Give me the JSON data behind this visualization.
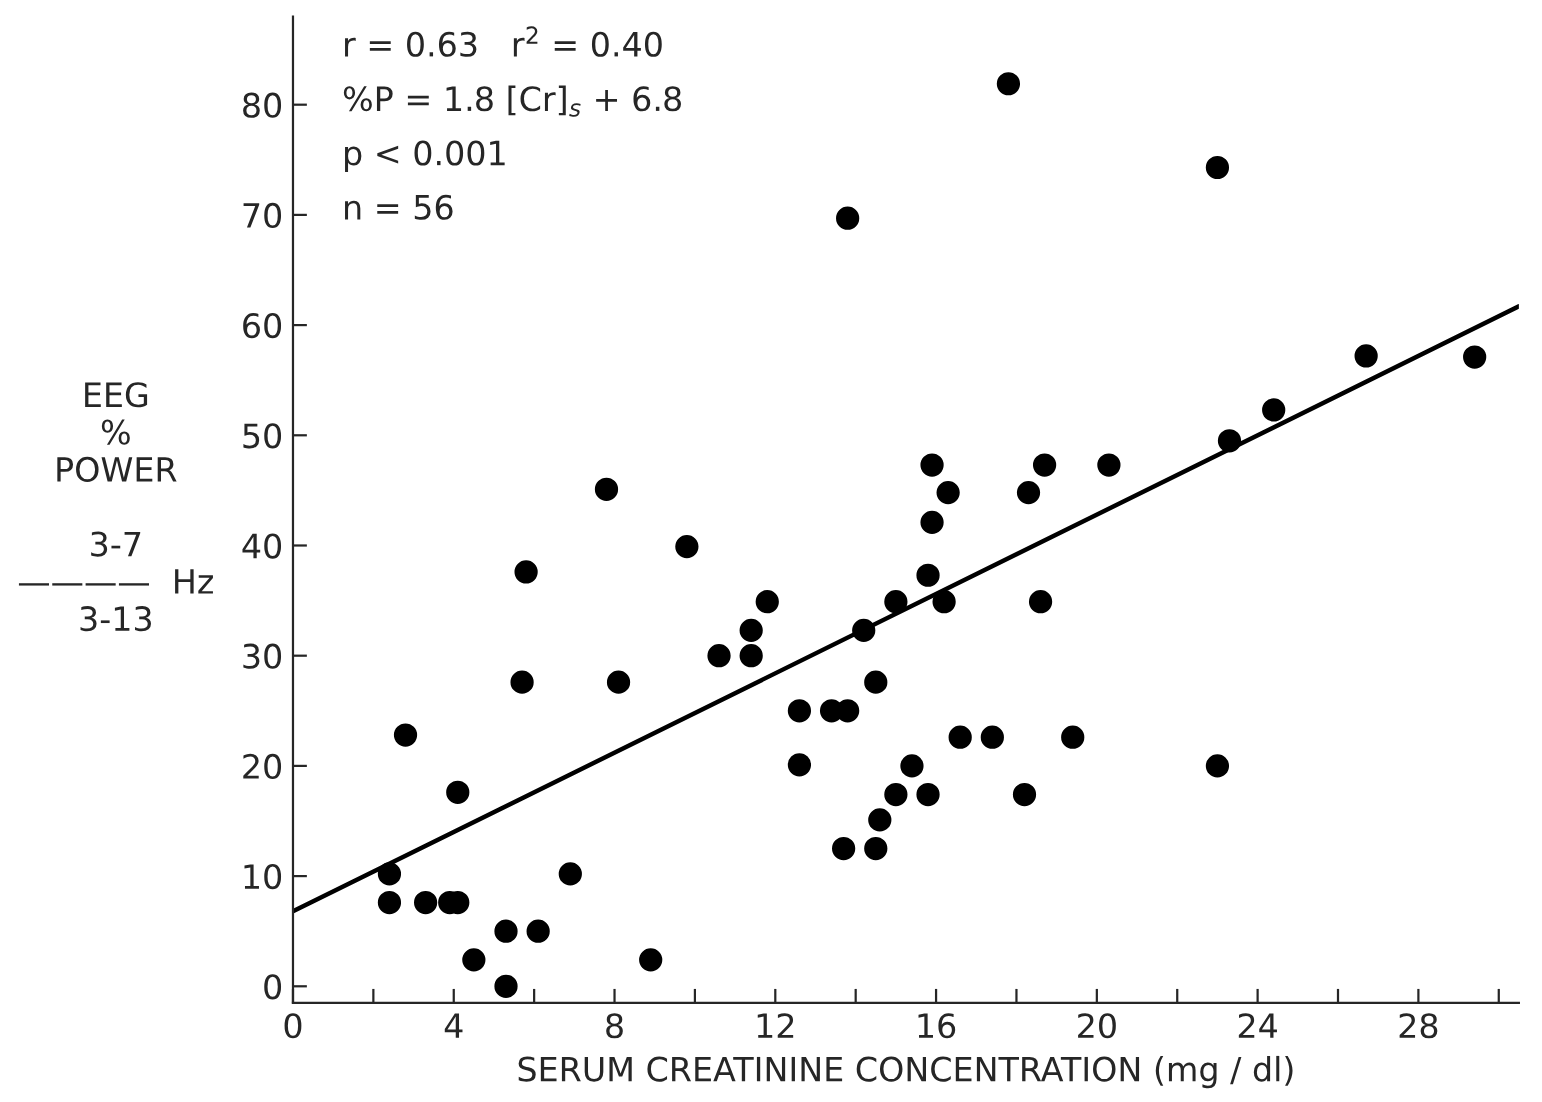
{
  "chart_data": {
    "type": "scatter",
    "xlabel": "SERUM CREATININE CONCENTRATION (mg / dl)",
    "ylabel": "EEG\n%\nPOWER\n\n3-7\n————  Hz\n3-13",
    "annotations": [
      "r = 0.63   r$^{2}$ = 0.40",
      "%P = 1.8 [Cr]$_{s}$ + 6.8",
      "p < 0.001",
      "n = 56"
    ],
    "series": [
      {
        "color": "#000000",
        "marker": "circle",
        "x": [
          2.4,
          2.4,
          2.8,
          3.3,
          3.9,
          4.1,
          4.1,
          4.5,
          5.3,
          5.3,
          5.7,
          5.8,
          6.1,
          6.9,
          7.8,
          8.1,
          8.9,
          9.8,
          10.6,
          11.4,
          11.4,
          11.8,
          12.6,
          12.6,
          13.4,
          13.8,
          13.7,
          14.5,
          14.2,
          14.5,
          14.6,
          15.0,
          15.0,
          15.4,
          15.8,
          15.8,
          15.9,
          15.9,
          16.2,
          16.3,
          16.6,
          17.4,
          18.2,
          18.3,
          18.6,
          18.7,
          19.4,
          20.3,
          23.0,
          23.3,
          17.8,
          13.8,
          23.0,
          26.7,
          29.4,
          24.4
        ],
        "values": [
          10.2,
          7.6,
          22.8,
          7.6,
          7.6,
          7.6,
          17.6,
          2.4,
          5.0,
          0.0,
          27.6,
          37.6,
          5.0,
          10.2,
          45.1,
          27.6,
          2.4,
          39.9,
          30.0,
          32.3,
          30.0,
          34.9,
          25.0,
          20.1,
          25.0,
          25.0,
          12.5,
          27.6,
          32.3,
          12.5,
          15.1,
          17.4,
          34.9,
          20.0,
          17.4,
          37.3,
          42.1,
          47.3,
          34.9,
          44.8,
          22.6,
          22.6,
          17.4,
          44.8,
          34.9,
          47.3,
          22.6,
          47.3,
          20.0,
          49.5,
          81.9,
          69.7,
          74.3,
          57.2,
          57.1,
          52.3
        ]
      },
      {
        "type": "line",
        "color": "#000000",
        "x": [
          0,
          30.5
        ],
        "values": [
          6.8,
          61.7
        ]
      }
    ],
    "xlim": [
      0,
      30.5
    ],
    "ylim": [
      -1.5,
      88
    ],
    "xticks": [
      0,
      {
        "value": 2,
        "label": null
      },
      4,
      {
        "value": 6,
        "label": null
      },
      8,
      {
        "value": 10,
        "label": null
      },
      12,
      {
        "value": 14,
        "label": null
      },
      16,
      {
        "value": 18,
        "label": null
      },
      20,
      {
        "value": 22,
        "label": null
      },
      24,
      {
        "value": 26,
        "label": null
      },
      28,
      {
        "value": 30,
        "label": null
      }
    ],
    "yticks": [
      0,
      10,
      20,
      30,
      40,
      50,
      60,
      70,
      80
    ],
    "grid": false,
    "legend": false
  }
}
